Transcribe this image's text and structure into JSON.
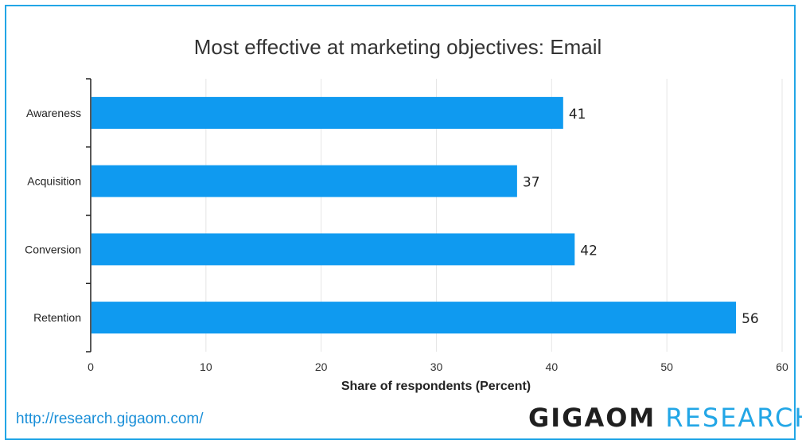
{
  "chart_data": {
    "type": "bar",
    "orientation": "horizontal",
    "title": "Most effective at marketing objectives: Email",
    "categories": [
      "Awareness",
      "Acquisition",
      "Conversion",
      "Retention"
    ],
    "values": [
      41,
      37,
      42,
      56
    ],
    "xlabel": "Share of respondents (Percent)",
    "ylabel": "",
    "xlim": [
      0,
      60
    ],
    "xticks": [
      0,
      10,
      20,
      30,
      40,
      50,
      60
    ],
    "grid": true,
    "legend": "none",
    "bar_color": "#0f9af0",
    "data_labels": [
      "41",
      "37",
      "42",
      "56"
    ]
  },
  "footer": {
    "url": "http://research.gigaom.com/",
    "brand_part1": "GIGAOM",
    "brand_part2": "RESEARCH"
  },
  "colors": {
    "frame": "#22a6e6",
    "brand_accent": "#22a6e6",
    "gridline": "#e6e6e6"
  }
}
